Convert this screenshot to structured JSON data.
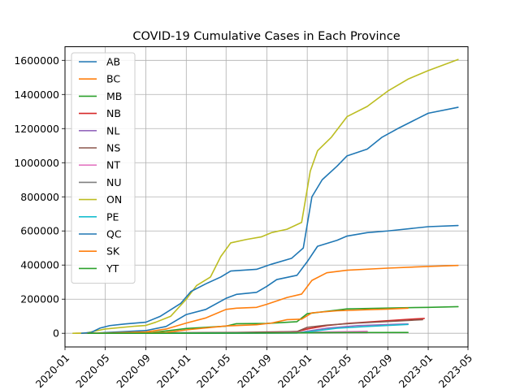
{
  "chart_data": {
    "type": "line",
    "title": "COVID-19 Cumulative Cases in Each Province",
    "xlabel": "",
    "ylabel": "",
    "grid": true,
    "legend_position": "top-left",
    "xlim": [
      "2020-01-01",
      "2023-05-01"
    ],
    "ylim": [
      -80000,
      1680000
    ],
    "x_ticks": [
      "2020-01",
      "2020-05",
      "2020-09",
      "2021-01",
      "2021-05",
      "2021-09",
      "2022-01",
      "2022-05",
      "2022-09",
      "2023-01",
      "2023-05"
    ],
    "y_ticks": [
      0,
      200000,
      400000,
      600000,
      800000,
      1000000,
      1200000,
      1400000,
      1600000
    ],
    "y_tick_labels": [
      "0",
      "200000",
      "400000",
      "600000",
      "800000",
      "1000000",
      "1200000",
      "1400000",
      "1600000"
    ],
    "series": [
      {
        "name": "AB",
        "color": "#1f77b4",
        "points": [
          [
            "2020-03-05",
            0
          ],
          [
            "2020-04-01",
            1200
          ],
          [
            "2020-06-01",
            7500
          ],
          [
            "2020-09-01",
            16000
          ],
          [
            "2020-11-01",
            40000
          ],
          [
            "2021-01-01",
            110000
          ],
          [
            "2021-03-01",
            140000
          ],
          [
            "2021-05-01",
            205000
          ],
          [
            "2021-06-01",
            228000
          ],
          [
            "2021-08-01",
            240000
          ],
          [
            "2021-09-01",
            275000
          ],
          [
            "2021-10-01",
            315000
          ],
          [
            "2021-12-01",
            340000
          ],
          [
            "2022-01-01",
            420000
          ],
          [
            "2022-02-01",
            510000
          ],
          [
            "2022-04-01",
            545000
          ],
          [
            "2022-05-01",
            570000
          ],
          [
            "2022-07-01",
            590000
          ],
          [
            "2022-09-01",
            600000
          ],
          [
            "2023-01-01",
            625000
          ],
          [
            "2023-04-01",
            632000
          ]
        ]
      },
      {
        "name": "BC",
        "color": "#ff7f0e",
        "points": [
          [
            "2020-02-01",
            0
          ],
          [
            "2020-04-01",
            1500
          ],
          [
            "2020-06-01",
            3000
          ],
          [
            "2020-09-01",
            8000
          ],
          [
            "2020-11-01",
            25000
          ],
          [
            "2021-01-01",
            60000
          ],
          [
            "2021-03-01",
            90000
          ],
          [
            "2021-05-01",
            140000
          ],
          [
            "2021-06-01",
            147000
          ],
          [
            "2021-08-01",
            152000
          ],
          [
            "2021-09-01",
            170000
          ],
          [
            "2021-11-01",
            210000
          ],
          [
            "2021-12-15",
            230000
          ],
          [
            "2022-01-15",
            310000
          ],
          [
            "2022-03-01",
            355000
          ],
          [
            "2022-05-01",
            370000
          ],
          [
            "2022-09-01",
            382000
          ],
          [
            "2023-01-01",
            392000
          ],
          [
            "2023-04-01",
            398000
          ]
        ]
      },
      {
        "name": "MB",
        "color": "#2ca02c",
        "points": [
          [
            "2020-03-10",
            0
          ],
          [
            "2020-09-01",
            1500
          ],
          [
            "2020-11-01",
            14000
          ],
          [
            "2021-01-01",
            28000
          ],
          [
            "2021-05-01",
            42000
          ],
          [
            "2021-06-01",
            56000
          ],
          [
            "2021-09-01",
            58000
          ],
          [
            "2021-12-01",
            68000
          ],
          [
            "2022-01-01",
            115000
          ],
          [
            "2022-05-01",
            143000
          ],
          [
            "2022-09-01",
            148000
          ],
          [
            "2023-01-01",
            152000
          ],
          [
            "2023-04-01",
            156000
          ]
        ]
      },
      {
        "name": "NB",
        "color": "#d62728",
        "points": [
          [
            "2020-03-10",
            0
          ],
          [
            "2021-04-01",
            1500
          ],
          [
            "2021-09-01",
            5000
          ],
          [
            "2021-12-01",
            10000
          ],
          [
            "2022-01-01",
            25000
          ],
          [
            "2022-03-01",
            45000
          ],
          [
            "2022-05-01",
            58000
          ],
          [
            "2022-08-01",
            70000
          ],
          [
            "2022-11-01",
            82000
          ],
          [
            "2022-12-20",
            87000
          ]
        ]
      },
      {
        "name": "NL",
        "color": "#9467bd",
        "points": [
          [
            "2020-03-10",
            0
          ],
          [
            "2021-12-01",
            2000
          ],
          [
            "2022-01-01",
            12000
          ],
          [
            "2022-03-01",
            30000
          ],
          [
            "2022-06-01",
            45000
          ],
          [
            "2022-10-01",
            53000
          ],
          [
            "2022-11-01",
            55000
          ]
        ]
      },
      {
        "name": "NS",
        "color": "#8c564b",
        "points": [
          [
            "2020-03-10",
            0
          ],
          [
            "2021-06-01",
            5000
          ],
          [
            "2021-12-01",
            10000
          ],
          [
            "2022-01-01",
            35000
          ],
          [
            "2022-03-01",
            48000
          ],
          [
            "2022-06-01",
            60000
          ],
          [
            "2022-10-01",
            72000
          ],
          [
            "2022-12-15",
            80000
          ]
        ]
      },
      {
        "name": "NT",
        "color": "#e377c2",
        "points": [
          [
            "2020-03-10",
            0
          ],
          [
            "2021-08-01",
            1000
          ],
          [
            "2022-01-01",
            6000
          ],
          [
            "2022-06-01",
            11000
          ],
          [
            "2022-07-01",
            12000
          ]
        ]
      },
      {
        "name": "NU",
        "color": "#7f7f7f",
        "points": [
          [
            "2020-03-10",
            0
          ],
          [
            "2021-05-01",
            600
          ],
          [
            "2022-01-01",
            2500
          ],
          [
            "2022-04-01",
            3500
          ],
          [
            "2022-07-01",
            3500
          ]
        ]
      },
      {
        "name": "ON",
        "color": "#bcbd22",
        "points": [
          [
            "2020-01-25",
            0
          ],
          [
            "2020-03-01",
            500
          ],
          [
            "2020-05-01",
            25000
          ],
          [
            "2020-08-01",
            42000
          ],
          [
            "2020-09-01",
            46000
          ],
          [
            "2020-10-01",
            65000
          ],
          [
            "2020-11-15",
            100000
          ],
          [
            "2021-01-01",
            200000
          ],
          [
            "2021-02-01",
            280000
          ],
          [
            "2021-03-15",
            330000
          ],
          [
            "2021-04-15",
            450000
          ],
          [
            "2021-05-15",
            530000
          ],
          [
            "2021-07-01",
            550000
          ],
          [
            "2021-08-15",
            565000
          ],
          [
            "2021-09-15",
            590000
          ],
          [
            "2021-11-01",
            610000
          ],
          [
            "2021-12-15",
            650000
          ],
          [
            "2022-01-10",
            950000
          ],
          [
            "2022-02-01",
            1070000
          ],
          [
            "2022-03-15",
            1150000
          ],
          [
            "2022-05-01",
            1270000
          ],
          [
            "2022-07-01",
            1330000
          ],
          [
            "2022-09-01",
            1420000
          ],
          [
            "2022-11-01",
            1490000
          ],
          [
            "2023-01-01",
            1540000
          ],
          [
            "2023-04-01",
            1605000
          ]
        ]
      },
      {
        "name": "PE",
        "color": "#17becf",
        "points": [
          [
            "2020-03-10",
            0
          ],
          [
            "2021-12-01",
            2000
          ],
          [
            "2022-01-01",
            8000
          ],
          [
            "2022-04-01",
            30000
          ],
          [
            "2022-07-01",
            40000
          ],
          [
            "2022-11-01",
            52000
          ]
        ]
      },
      {
        "name": "QC",
        "color": "#1f77b4",
        "points": [
          [
            "2020-02-20",
            0
          ],
          [
            "2020-03-20",
            5000
          ],
          [
            "2020-04-15",
            30000
          ],
          [
            "2020-05-15",
            45000
          ],
          [
            "2020-07-01",
            55000
          ],
          [
            "2020-09-01",
            65000
          ],
          [
            "2020-10-15",
            100000
          ],
          [
            "2020-12-15",
            175000
          ],
          [
            "2021-01-15",
            245000
          ],
          [
            "2021-03-01",
            290000
          ],
          [
            "2021-04-15",
            330000
          ],
          [
            "2021-05-15",
            365000
          ],
          [
            "2021-08-01",
            375000
          ],
          [
            "2021-09-15",
            405000
          ],
          [
            "2021-11-15",
            440000
          ],
          [
            "2021-12-20",
            500000
          ],
          [
            "2022-01-15",
            800000
          ],
          [
            "2022-02-15",
            900000
          ],
          [
            "2022-04-01",
            980000
          ],
          [
            "2022-05-01",
            1040000
          ],
          [
            "2022-07-01",
            1080000
          ],
          [
            "2022-08-15",
            1150000
          ],
          [
            "2022-10-01",
            1200000
          ],
          [
            "2022-12-01",
            1260000
          ],
          [
            "2023-01-01",
            1290000
          ],
          [
            "2023-04-01",
            1325000
          ]
        ]
      },
      {
        "name": "SK",
        "color": "#ff7f0e",
        "points": [
          [
            "2020-03-10",
            0
          ],
          [
            "2020-11-01",
            5000
          ],
          [
            "2021-01-01",
            20000
          ],
          [
            "2021-05-01",
            43000
          ],
          [
            "2021-08-01",
            50000
          ],
          [
            "2021-09-15",
            60000
          ],
          [
            "2021-11-01",
            80000
          ],
          [
            "2021-12-15",
            83000
          ],
          [
            "2022-01-15",
            120000
          ],
          [
            "2022-04-01",
            132000
          ],
          [
            "2022-07-01",
            138000
          ],
          [
            "2022-09-01",
            142000
          ],
          [
            "2022-11-01",
            147000
          ]
        ]
      },
      {
        "name": "YT",
        "color": "#2ca02c",
        "points": [
          [
            "2020-03-10",
            0
          ],
          [
            "2021-07-01",
            1000
          ],
          [
            "2022-01-01",
            3000
          ],
          [
            "2022-06-01",
            4500
          ],
          [
            "2022-11-01",
            5000
          ]
        ]
      }
    ]
  }
}
